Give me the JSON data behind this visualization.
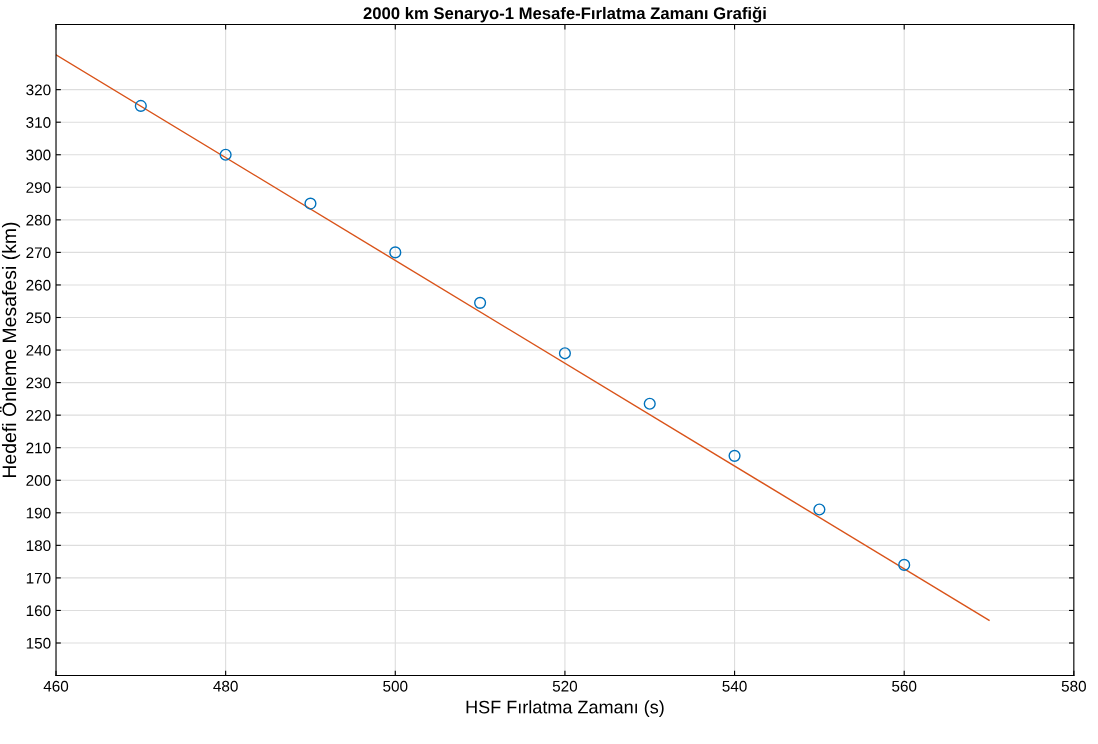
{
  "chart_data": {
    "type": "scatter",
    "title": "2000 km Senaryo-1 Mesafe-Fırlatma Zamanı Grafiği",
    "xlabel": "HSF Fırlatma Zamanı (s)",
    "ylabel": "Hedefi Önleme Mesafesi (km)",
    "xlim": [
      460,
      580
    ],
    "xticks": [
      460,
      480,
      500,
      520,
      540,
      560,
      580
    ],
    "ylim": [
      140,
      340
    ],
    "yticks": [
      150,
      160,
      170,
      180,
      190,
      200,
      210,
      220,
      230,
      240,
      250,
      260,
      270,
      280,
      290,
      300,
      310,
      320
    ],
    "grid": true,
    "series": [
      {
        "marker": "circle",
        "color": "#0072bd",
        "x": [
          470,
          480,
          490,
          500,
          510,
          520,
          530,
          540,
          550,
          560
        ],
        "values": [
          315,
          300,
          285,
          270,
          254.5,
          239,
          223.5,
          207.5,
          191,
          174
        ]
      },
      {
        "type": "line",
        "marker": "none",
        "line_style": "solid",
        "color": "#d95319",
        "x": [
          460,
          570
        ],
        "values": [
          330.7,
          157
        ]
      }
    ]
  }
}
